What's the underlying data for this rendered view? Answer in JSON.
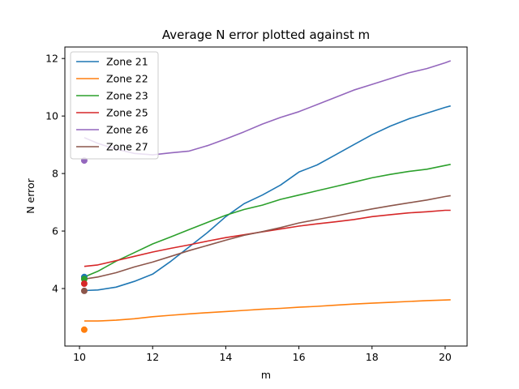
{
  "chart_data": {
    "type": "line",
    "title": "Average N error plotted against m",
    "xlabel": "m",
    "ylabel": "N error",
    "xlim": [
      9.6,
      20.6
    ],
    "ylim": [
      2.0,
      12.4
    ],
    "xticks": [
      10,
      12,
      14,
      16,
      18,
      20
    ],
    "yticks": [
      4,
      6,
      8,
      10,
      12
    ],
    "grid": false,
    "legend_position": "top-left",
    "series": [
      {
        "name": "Zone 21",
        "color": "#1f77b4",
        "x": [
          10.13,
          10.5,
          11.0,
          11.5,
          12.0,
          12.5,
          13.0,
          13.5,
          14.0,
          14.5,
          15.0,
          15.5,
          16.0,
          16.5,
          17.0,
          17.5,
          18.0,
          18.5,
          19.0,
          19.5,
          20.0,
          20.15
        ],
        "y": [
          3.93,
          3.95,
          4.05,
          4.25,
          4.5,
          4.95,
          5.45,
          5.95,
          6.5,
          6.95,
          7.25,
          7.6,
          8.05,
          8.3,
          8.65,
          9.0,
          9.35,
          9.65,
          9.9,
          10.1,
          10.3,
          10.35
        ],
        "marker": {
          "x": 10.13,
          "y": 4.4
        }
      },
      {
        "name": "Zone 22",
        "color": "#ff7f0e",
        "x": [
          10.13,
          10.5,
          11.0,
          11.5,
          12.0,
          12.5,
          13.0,
          13.5,
          14.0,
          14.5,
          15.0,
          15.5,
          16.0,
          16.5,
          17.0,
          17.5,
          18.0,
          18.5,
          19.0,
          19.5,
          20.0,
          20.15
        ],
        "y": [
          2.87,
          2.87,
          2.9,
          2.95,
          3.02,
          3.07,
          3.12,
          3.16,
          3.2,
          3.24,
          3.28,
          3.31,
          3.35,
          3.38,
          3.42,
          3.46,
          3.49,
          3.52,
          3.55,
          3.58,
          3.6,
          3.61
        ],
        "marker": {
          "x": 10.13,
          "y": 2.57
        }
      },
      {
        "name": "Zone 23",
        "color": "#2ca02c",
        "x": [
          10.13,
          10.5,
          11.0,
          11.5,
          12.0,
          12.5,
          13.0,
          13.5,
          14.0,
          14.5,
          15.0,
          15.5,
          16.0,
          16.5,
          17.0,
          17.5,
          18.0,
          18.5,
          19.0,
          19.5,
          20.0,
          20.15
        ],
        "y": [
          4.4,
          4.6,
          4.95,
          5.25,
          5.55,
          5.8,
          6.05,
          6.3,
          6.55,
          6.75,
          6.9,
          7.1,
          7.25,
          7.4,
          7.55,
          7.7,
          7.85,
          7.97,
          8.07,
          8.15,
          8.28,
          8.32
        ],
        "marker": {
          "x": 10.13,
          "y": 4.33
        }
      },
      {
        "name": "Zone 25",
        "color": "#d62728",
        "x": [
          10.13,
          10.5,
          11.0,
          11.5,
          12.0,
          12.5,
          13.0,
          13.5,
          14.0,
          14.5,
          15.0,
          15.5,
          16.0,
          16.5,
          17.0,
          17.5,
          18.0,
          18.5,
          19.0,
          19.5,
          20.0,
          20.15
        ],
        "y": [
          4.77,
          4.82,
          4.97,
          5.12,
          5.27,
          5.4,
          5.52,
          5.65,
          5.77,
          5.87,
          5.97,
          6.07,
          6.17,
          6.25,
          6.32,
          6.4,
          6.5,
          6.57,
          6.63,
          6.67,
          6.72,
          6.72
        ],
        "marker": {
          "x": 10.13,
          "y": 4.17
        }
      },
      {
        "name": "Zone 26",
        "color": "#9467bd",
        "x": [
          10.13,
          10.5,
          11.0,
          11.5,
          12.0,
          12.5,
          13.0,
          13.5,
          14.0,
          14.5,
          15.0,
          15.5,
          16.0,
          16.5,
          17.0,
          17.5,
          18.0,
          18.5,
          19.0,
          19.5,
          20.0,
          20.15
        ],
        "y": [
          9.25,
          9.05,
          8.85,
          8.7,
          8.65,
          8.72,
          8.78,
          8.97,
          9.2,
          9.45,
          9.72,
          9.95,
          10.15,
          10.4,
          10.65,
          10.9,
          11.1,
          11.3,
          11.5,
          11.65,
          11.85,
          11.92
        ],
        "marker": {
          "x": 10.13,
          "y": 8.45
        }
      },
      {
        "name": "Zone 27",
        "color": "#8c564b",
        "x": [
          10.13,
          10.5,
          11.0,
          11.5,
          12.0,
          12.5,
          13.0,
          13.5,
          14.0,
          14.5,
          15.0,
          15.5,
          16.0,
          16.5,
          17.0,
          17.5,
          18.0,
          18.5,
          19.0,
          19.5,
          20.0,
          20.15
        ],
        "y": [
          4.33,
          4.4,
          4.55,
          4.75,
          4.92,
          5.12,
          5.32,
          5.5,
          5.68,
          5.85,
          5.98,
          6.12,
          6.28,
          6.4,
          6.52,
          6.65,
          6.77,
          6.88,
          6.98,
          7.08,
          7.2,
          7.23
        ],
        "marker": {
          "x": 10.13,
          "y": 3.92
        }
      }
    ]
  }
}
